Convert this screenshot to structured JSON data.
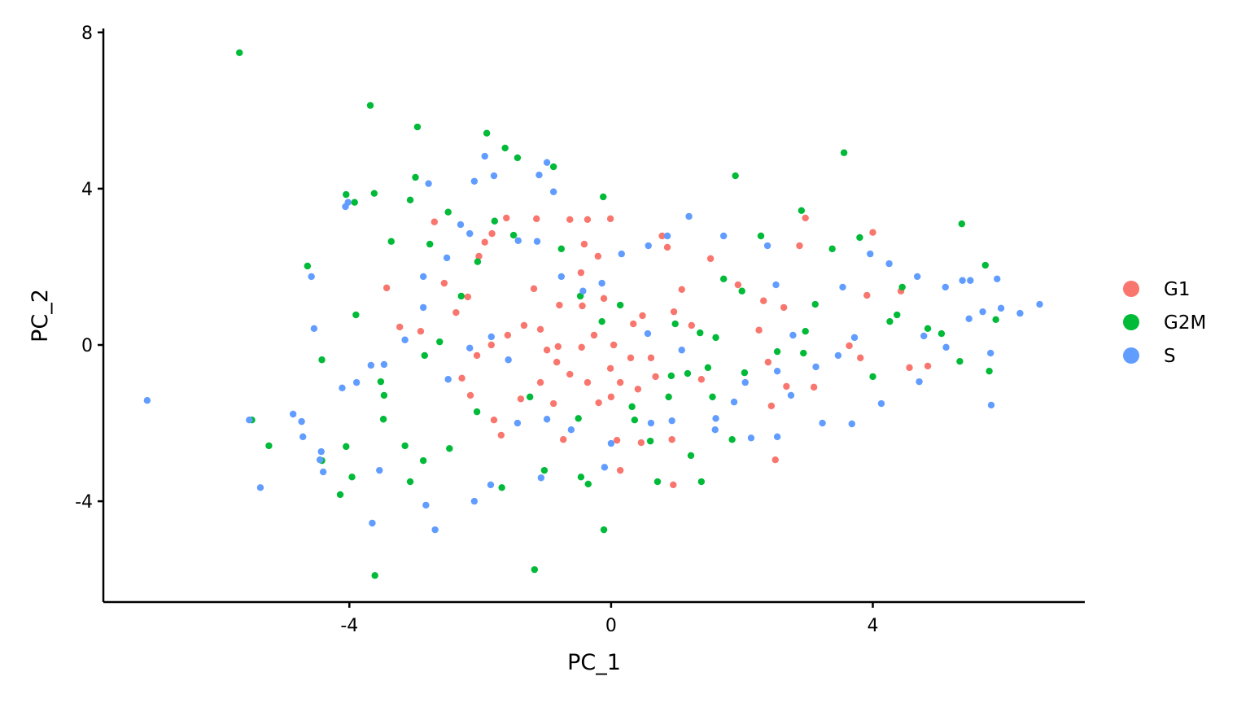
{
  "chart_data": {
    "type": "scatter",
    "x_label": "PC_1",
    "y_label": "PC_2",
    "xlim": [
      -7.76,
      7.24
    ],
    "ylim": [
      -6.58,
      8.1
    ],
    "xticks": [
      -4,
      0,
      4
    ],
    "yticks": [
      -4,
      0,
      4,
      8
    ],
    "legend": "right",
    "series": [
      {
        "name": "G1",
        "color": "#F8766D",
        "x": [
          -3.43,
          -3.23,
          -2.91,
          -2.7,
          -2.55,
          -2.19,
          -2.37,
          -2.02,
          -1.93,
          -1.82,
          -1.6,
          -1.14,
          -0.63,
          -0.36,
          -0.01,
          0.78,
          0.86,
          1.52,
          2.97,
          2.88,
          4.0,
          1.94,
          2.33,
          2.64,
          3.91,
          4.43,
          3.64,
          3.81,
          4.56,
          4.84,
          2.26,
          2.4,
          2.68,
          2.45,
          2.51,
          1.38,
          0.96,
          0.48,
          -0.11,
          -0.44,
          -0.79,
          -1.18,
          -1.33,
          -1.58,
          -1.83,
          -2.05,
          -2.28,
          -2.15,
          -1.79,
          -1.68,
          -1.38,
          -1.08,
          -0.83,
          -0.63,
          -0.36,
          -0.19,
          0.0,
          0.14,
          -0.01,
          0.3,
          0.61,
          0.68,
          0.41,
          0.09,
          0.46,
          0.93,
          0.95,
          0.14,
          -0.73,
          -0.88,
          -0.45,
          -0.26,
          0.04,
          -0.81,
          -1.08,
          -0.98,
          -0.41,
          -0.2,
          -0.46,
          0.34,
          1.23,
          1.08,
          3.1
        ],
        "values": [
          1.46,
          0.46,
          0.35,
          3.15,
          1.58,
          1.23,
          0.83,
          2.27,
          2.63,
          2.85,
          3.25,
          3.23,
          3.21,
          3.21,
          3.23,
          2.79,
          2.5,
          2.21,
          3.25,
          2.54,
          2.88,
          1.54,
          1.13,
          0.96,
          1.27,
          1.38,
          -0.02,
          -0.33,
          -0.58,
          -0.54,
          0.38,
          -0.44,
          -1.06,
          -1.56,
          -2.94,
          -0.88,
          0.85,
          0.75,
          1.19,
          1.0,
          1.02,
          1.44,
          0.5,
          0.25,
          0.0,
          -0.27,
          -0.85,
          -1.29,
          -1.92,
          -2.31,
          -1.38,
          -0.96,
          -0.44,
          -0.75,
          -0.96,
          -1.48,
          -1.33,
          -0.96,
          -0.6,
          -0.33,
          -0.33,
          -0.81,
          -1.13,
          -2.44,
          -2.5,
          -2.42,
          -3.58,
          -3.21,
          -2.42,
          -1.5,
          -0.06,
          0.25,
          0.0,
          -0.04,
          0.4,
          -0.13,
          2.58,
          2.27,
          1.85,
          0.54,
          0.5,
          1.42,
          -1.08
        ]
      },
      {
        "name": "G2M",
        "color": "#00BA38",
        "x": [
          -5.68,
          -3.68,
          -2.96,
          -1.9,
          -1.62,
          -1.43,
          -0.88,
          1.9,
          3.56,
          -0.12,
          -4.05,
          -3.92,
          -3.62,
          -2.99,
          -3.07,
          -2.49,
          2.91,
          5.36,
          2.29,
          3.38,
          3.8,
          5.72,
          -4.64,
          -3.36,
          -2.77,
          -2.04,
          -1.49,
          -1.78,
          1.72,
          2.0,
          3.12,
          4.45,
          4.37,
          4.84,
          5.05,
          5.88,
          -3.9,
          -4.42,
          -3.52,
          -3.47,
          -5.49,
          -5.23,
          -4.42,
          -4.05,
          -3.96,
          -4.14,
          -3.61,
          -3.07,
          -2.87,
          -2.47,
          -1.67,
          -1.02,
          -0.46,
          -0.35,
          -0.11,
          -1.17,
          0.71,
          1.38,
          1.22,
          1.85,
          5.78,
          5.33,
          4.0,
          1.17,
          0.92,
          1.48,
          1.36,
          0.98,
          1.6,
          2.54,
          2.94,
          -0.14,
          0.14,
          -0.76,
          -0.47,
          -2.29,
          -2.62,
          -2.85,
          -2.05,
          -1.24,
          -0.5,
          0.32,
          0.88,
          1.55,
          2.04,
          2.97,
          4.26,
          0.36,
          0.6,
          -3.15,
          -3.48
        ],
        "values": [
          7.48,
          6.13,
          5.58,
          5.42,
          5.04,
          4.79,
          4.56,
          4.33,
          4.92,
          3.79,
          3.85,
          3.65,
          3.88,
          4.29,
          3.71,
          3.4,
          3.44,
          3.1,
          2.79,
          2.46,
          2.75,
          2.04,
          2.02,
          2.65,
          2.58,
          2.13,
          2.81,
          3.17,
          1.69,
          1.38,
          1.04,
          1.48,
          0.77,
          0.42,
          0.29,
          0.65,
          0.77,
          -0.38,
          -0.94,
          -1.29,
          -1.92,
          -2.58,
          -2.96,
          -2.6,
          -3.38,
          -3.83,
          -5.9,
          -3.5,
          -2.96,
          -2.65,
          -3.65,
          -3.21,
          -3.38,
          -3.56,
          -4.73,
          -5.75,
          -3.5,
          -3.5,
          -2.83,
          -2.42,
          -0.67,
          -0.42,
          -0.81,
          -0.73,
          -0.79,
          -0.58,
          0.31,
          0.54,
          0.19,
          -0.17,
          -0.21,
          0.6,
          1.02,
          2.46,
          1.25,
          1.25,
          0.08,
          -0.27,
          -1.71,
          -1.33,
          -1.88,
          -1.58,
          -1.33,
          -1.33,
          -0.71,
          0.35,
          0.6,
          -1.92,
          -2.46,
          -2.58,
          -1.9
        ]
      },
      {
        "name": "S",
        "color": "#619CFF",
        "x": [
          -7.09,
          -5.53,
          -5.36,
          -4.86,
          -4.73,
          -4.71,
          -4.45,
          -4.4,
          -4.43,
          -4.54,
          -4.58,
          -4.06,
          -4.02,
          -4.11,
          -3.89,
          -3.67,
          -3.65,
          -3.54,
          -2.83,
          -2.69,
          -2.79,
          -2.09,
          -1.93,
          -1.79,
          -1.1,
          -0.98,
          -0.88,
          -2.09,
          -1.84,
          -1.07,
          -0.1,
          1.19,
          1.72,
          2.39,
          3.54,
          3.96,
          4.25,
          4.68,
          5.11,
          5.37,
          5.49,
          5.9,
          6.25,
          6.55,
          5.96,
          5.68,
          5.47,
          5.8,
          5.81,
          5.12,
          4.78,
          4.71,
          4.13,
          3.72,
          3.47,
          3.23,
          3.68,
          2.54,
          2.14,
          1.59,
          0.93,
          2.75,
          2.54,
          2.78,
          2.52,
          0.86,
          0.57,
          0.16,
          -0.14,
          -0.43,
          -0.76,
          -1.13,
          -1.42,
          -2.16,
          -2.3,
          -2.51,
          -2.87,
          -3.15,
          -3.47,
          -2.87,
          -2.49,
          -2.16,
          -1.83,
          -1.57,
          -1.43,
          -0.98,
          -0.61,
          0.0,
          0.61,
          1.6,
          1.88,
          2.05,
          0.56,
          1.08,
          3.13
        ],
        "values": [
          -1.42,
          -1.92,
          -3.65,
          -1.77,
          -1.96,
          -2.35,
          -2.94,
          -3.25,
          -2.73,
          0.42,
          1.75,
          3.54,
          3.65,
          -1.1,
          -0.96,
          -0.52,
          -4.56,
          -3.21,
          -4.1,
          -4.73,
          4.13,
          4.19,
          4.83,
          4.33,
          4.35,
          4.67,
          3.92,
          -4.0,
          -3.58,
          -3.4,
          -3.13,
          3.29,
          2.79,
          2.54,
          1.48,
          2.33,
          2.08,
          1.75,
          1.48,
          1.65,
          1.65,
          1.69,
          0.81,
          1.04,
          0.94,
          0.85,
          0.67,
          -0.21,
          -1.54,
          -0.06,
          0.23,
          -0.94,
          -1.5,
          0.19,
          -0.27,
          -2.0,
          -2.02,
          -2.35,
          -2.38,
          -2.17,
          -1.94,
          -1.29,
          -0.67,
          0.25,
          1.54,
          2.79,
          2.54,
          2.33,
          1.58,
          1.38,
          1.75,
          2.65,
          2.67,
          2.85,
          3.08,
          2.23,
          1.75,
          0.13,
          -0.5,
          0.96,
          -0.88,
          -0.08,
          0.21,
          -0.38,
          -2.0,
          -1.9,
          -2.17,
          -2.52,
          -2.0,
          -1.88,
          -1.46,
          -0.96,
          0.29,
          -0.13,
          -0.56
        ]
      }
    ]
  }
}
